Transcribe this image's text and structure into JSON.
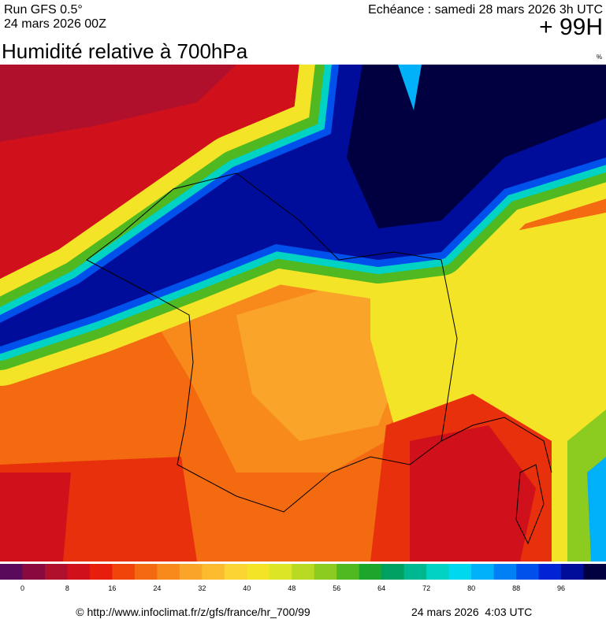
{
  "header": {
    "run": "Run GFS 0.5°",
    "run_date": "24 mars 2026 00Z",
    "forecast": "Echéance : samedi 28 mars 2026 3h UTC",
    "lead": "+ 99H",
    "title": "Humidité relative à 700hPa",
    "unit": "%"
  },
  "colorbar": {
    "colors": [
      "#5a0a5a",
      "#8a0a3e",
      "#b0102c",
      "#d0101a",
      "#e81e0c",
      "#f0440a",
      "#f46a10",
      "#f88a1c",
      "#faa42a",
      "#fcbc30",
      "#fcd434",
      "#f4e428",
      "#dce626",
      "#b8da22",
      "#8ccc20",
      "#50b820",
      "#1ca62c",
      "#00a060",
      "#00b890",
      "#00d2c4",
      "#00d8f0",
      "#00b0f8",
      "#0080f4",
      "#0050ec",
      "#0024d4",
      "#000c9a",
      "#000040"
    ],
    "labels": [
      "0",
      "8",
      "16",
      "24",
      "32",
      "40",
      "48",
      "56",
      "64",
      "72",
      "80",
      "88",
      "96"
    ]
  },
  "footer": {
    "url": "© http://www.infoclimat.fr/z/gfs/france/hr_700/99",
    "generated": "24 mars 2026  4:03 UTC"
  }
}
